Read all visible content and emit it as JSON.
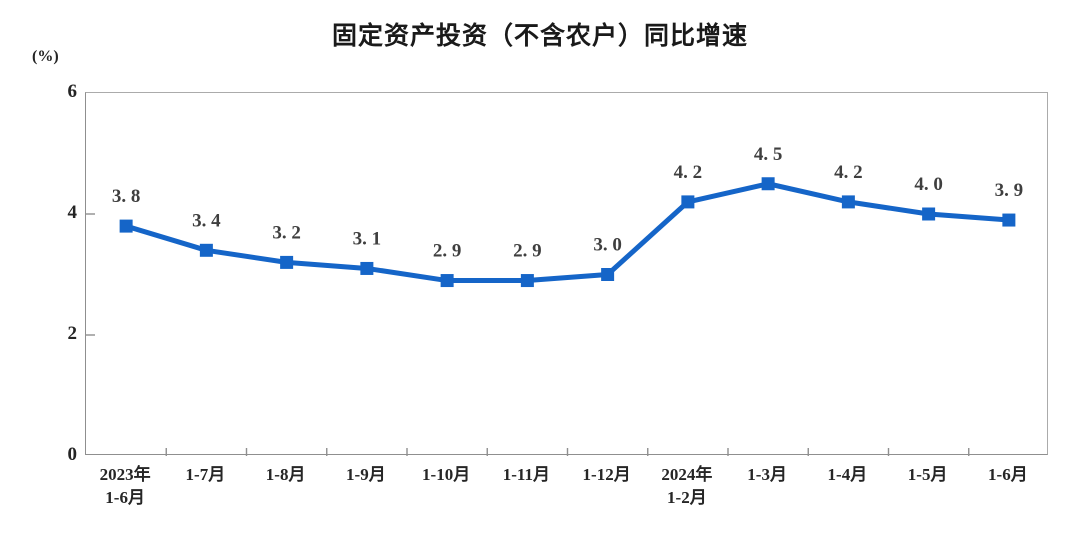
{
  "title": "固定资产投资（不含农户）同比增速",
  "y_axis": {
    "unit": "(%)",
    "ticks": [
      "6",
      "4",
      "2",
      "0"
    ]
  },
  "chart_data": {
    "type": "line",
    "title": "固定资产投资（不含农户）同比增速",
    "categories": [
      "2023年\n1-6月",
      "1-7月",
      "1-8月",
      "1-9月",
      "1-10月",
      "1-11月",
      "1-12月",
      "2024年\n1-2月",
      "1-3月",
      "1-4月",
      "1-5月",
      "1-6月"
    ],
    "values": [
      3.8,
      3.4,
      3.2,
      3.1,
      2.9,
      2.9,
      3.0,
      4.2,
      4.5,
      4.2,
      4.0,
      3.9
    ],
    "point_labels": [
      "3. 8",
      "3. 4",
      "3. 2",
      "3. 1",
      "2. 9",
      "2. 9",
      "3. 0",
      "4. 2",
      "4. 5",
      "4. 2",
      "4. 0",
      "3. 9"
    ],
    "xlabel": "",
    "ylabel": "(%)",
    "ylim": [
      0,
      6
    ],
    "y_ticks": [
      0,
      2,
      4,
      6
    ],
    "grid": false,
    "legend": false,
    "line_color": "#1565c8",
    "marker": "square",
    "label_color": "#3f3f3f",
    "axis_color": "#8f8f8f"
  }
}
